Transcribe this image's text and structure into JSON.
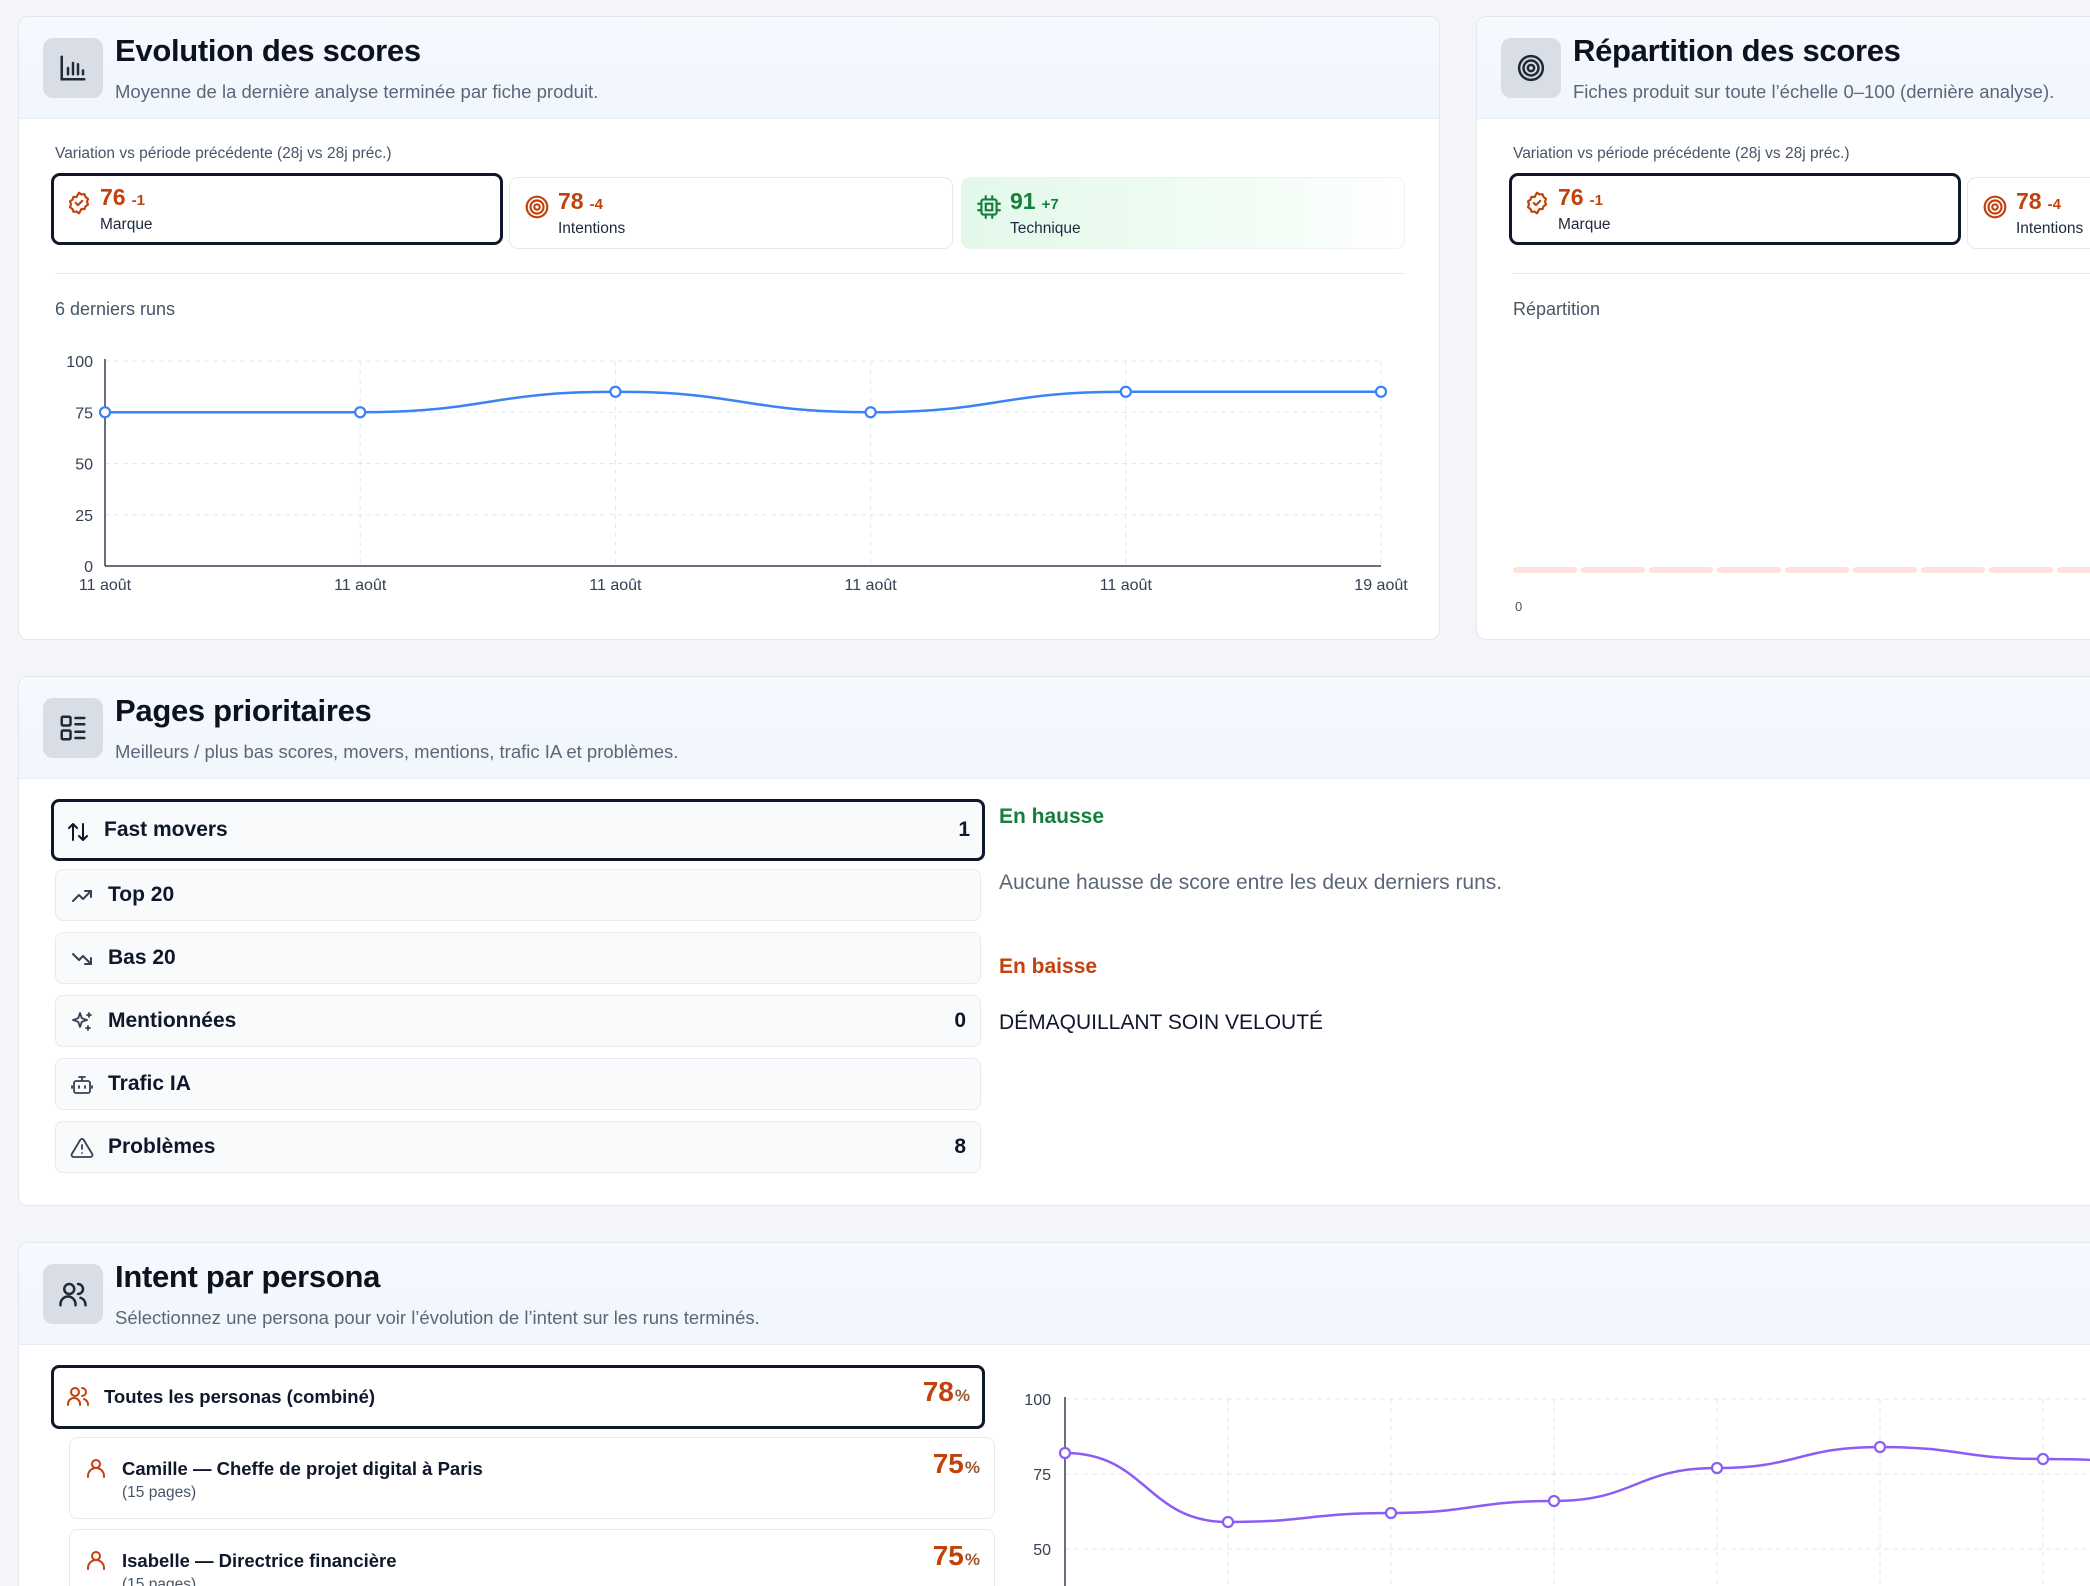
{
  "evolution": {
    "title": "Evolution des scores",
    "subtitle": "Moyenne de la dernière analyse terminée par fiche produit.",
    "variation_label": "Variation vs période précédente (28j vs 28j préc.)",
    "scores": [
      {
        "value": "76",
        "delta": "-1",
        "name": "Marque",
        "icon": "badge-check-icon",
        "selected": true
      },
      {
        "value": "78",
        "delta": "-4",
        "name": "Intentions",
        "icon": "target-icon",
        "selected": false
      },
      {
        "value": "91",
        "delta": "+7",
        "name": "Technique",
        "icon": "cpu-icon",
        "selected": false
      }
    ],
    "chart_label": "6 derniers runs"
  },
  "repartition": {
    "title": "Répartition des scores",
    "subtitle": "Fiches produit sur toute l’échelle 0–100 (dernière analyse).",
    "variation_label": "Variation vs période précédente (28j vs 28j préc.)",
    "scores": [
      {
        "value": "76",
        "delta": "-1",
        "name": "Marque",
        "icon": "badge-check-icon",
        "selected": true
      },
      {
        "value": "78",
        "delta": "-4",
        "name": "Intentions",
        "icon": "target-icon",
        "selected": false
      }
    ],
    "chart_label": "Répartition",
    "axis_zero": "0"
  },
  "pages": {
    "title": "Pages prioritaires",
    "subtitle": "Meilleurs / plus bas scores, movers, mentions, trafic IA et problèmes.",
    "items": [
      {
        "label": "Fast movers",
        "count": "1",
        "icon": "arrows-up-down-icon",
        "selected": true
      },
      {
        "label": "Top 20",
        "count": "",
        "icon": "trending-up-icon",
        "selected": false
      },
      {
        "label": "Bas 20",
        "count": "",
        "icon": "trending-down-icon",
        "selected": false
      },
      {
        "label": "Mentionnées",
        "count": "0",
        "icon": "sparkles-icon",
        "selected": false
      },
      {
        "label": "Trafic IA",
        "count": "",
        "icon": "bot-icon",
        "selected": false
      },
      {
        "label": "Problèmes",
        "count": "8",
        "icon": "alert-triangle-icon",
        "selected": false
      }
    ],
    "up_title": "En hausse",
    "up_text": "Aucune hausse de score entre les deux derniers runs.",
    "down_title": "En baisse",
    "down_text": "DÉMAQUILLANT SOIN VELOUTÉ",
    "up_color": "#15803d",
    "down_color": "#c2410c"
  },
  "persona": {
    "title": "Intent par persona",
    "subtitle": "Sélectionnez une persona pour voir l’évolution de l’intent sur les runs terminés.",
    "items": [
      {
        "name": "Toutes les personas (combiné)",
        "sub": "",
        "pct": "78",
        "unit": "%",
        "icon": "users-icon",
        "selected": true
      },
      {
        "name": "Camille — Cheffe de projet digital à Paris",
        "sub": "(15 pages)",
        "pct": "75",
        "unit": "%",
        "icon": "user-icon",
        "selected": false
      },
      {
        "name": "Isabelle — Directrice financière",
        "sub": "(15 pages)",
        "pct": "75",
        "unit": "%",
        "icon": "user-icon",
        "selected": false
      }
    ]
  },
  "chart_data": [
    {
      "type": "line",
      "x": [
        "11 août",
        "11 août",
        "11 août",
        "11 août",
        "11 août",
        "19 août"
      ],
      "series": [
        {
          "values": [
            75,
            75,
            85,
            75,
            85,
            85
          ],
          "color": "#3b82f6"
        }
      ],
      "yticks": [
        "100",
        "75",
        "50",
        "25",
        "0"
      ],
      "ylim": [
        0,
        100
      ],
      "grid": true
    },
    {
      "type": "line",
      "series": [
        {
          "values": [
            82,
            59,
            62,
            66,
            77,
            84,
            80
          ],
          "color": "#8b5cf6"
        }
      ],
      "yticks": [
        "100",
        "75",
        "50"
      ],
      "ylim": [
        0,
        100
      ],
      "grid": true
    }
  ]
}
